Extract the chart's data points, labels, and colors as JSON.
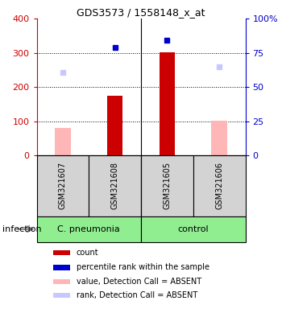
{
  "title": "GDS3573 / 1558148_x_at",
  "samples": [
    "GSM321607",
    "GSM321608",
    "GSM321605",
    "GSM321606"
  ],
  "count_values": [
    null,
    175,
    302,
    null
  ],
  "count_absent_values": [
    80,
    null,
    null,
    102
  ],
  "percentile_values": [
    null,
    315,
    337,
    null
  ],
  "percentile_absent_values": [
    243,
    null,
    null,
    258
  ],
  "ylim": [
    0,
    400
  ],
  "yticks_left": [
    0,
    100,
    200,
    300,
    400
  ],
  "yticks_right": [
    0,
    25,
    50,
    75,
    100
  ],
  "ytick_right_labels": [
    "0",
    "25",
    "50",
    "75",
    "100%"
  ],
  "color_count": "#cc0000",
  "color_count_absent": "#ffb6b6",
  "color_pct": "#0000cc",
  "color_pct_absent": "#c8c8ff",
  "color_gray": "#d3d3d3",
  "color_green": "#90ee90",
  "bar_width": 0.3,
  "group_labels": [
    "C. pneumonia",
    "control"
  ],
  "group_ranges": [
    [
      0,
      1
    ],
    [
      2,
      3
    ]
  ],
  "infection_label": "infection",
  "legend_items": [
    {
      "color": "#cc0000",
      "label": "count"
    },
    {
      "color": "#0000cc",
      "label": "percentile rank within the sample"
    },
    {
      "color": "#ffb6b6",
      "label": "value, Detection Call = ABSENT"
    },
    {
      "color": "#c8c8ff",
      "label": "rank, Detection Call = ABSENT"
    }
  ]
}
